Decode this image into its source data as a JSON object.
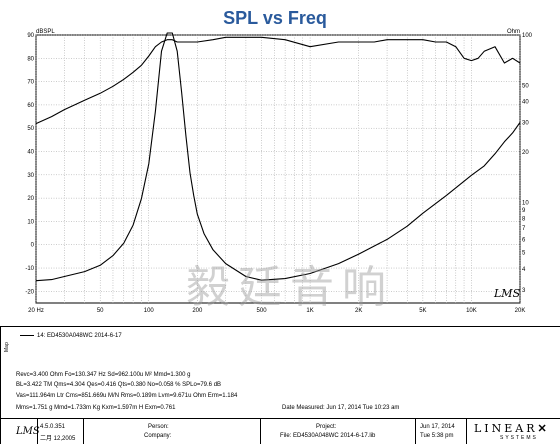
{
  "chart_data": {
    "type": "line",
    "title": "SPL vs Freq",
    "left_unit": "dBSPL",
    "right_unit": "Ohm",
    "x_scale": "log",
    "xlim": [
      20,
      20000
    ],
    "x_ticks": [
      20,
      50,
      100,
      200,
      500,
      1000,
      2000,
      5000,
      10000,
      20000
    ],
    "x_tick_labels": [
      "20 Hz",
      "50",
      "100",
      "200",
      "500",
      "1K",
      "2K",
      "5K",
      "10K",
      "20K"
    ],
    "ylim_left": [
      -25,
      90
    ],
    "y_left_ticks": [
      90,
      80,
      70,
      60,
      50,
      40,
      30,
      20,
      10,
      0,
      -10,
      -20
    ],
    "y_right_scale": "log",
    "ylim_right": [
      2.5,
      100
    ],
    "y_right_labeled_ticks": [
      100,
      50,
      40,
      30,
      20,
      10,
      9,
      8,
      7,
      6,
      5,
      4,
      3
    ],
    "grid": true,
    "watermark_text": "毅廷音响",
    "logo": "LMS",
    "series": [
      {
        "axis": "left",
        "color": "#000000",
        "x": [
          20,
          25,
          30,
          40,
          50,
          60,
          70,
          80,
          90,
          100,
          110,
          120,
          130,
          140,
          150,
          170,
          200,
          250,
          300,
          400,
          500,
          700,
          1000,
          1500,
          2000,
          2500,
          3000,
          4000,
          5000,
          6000,
          7000,
          8000,
          9000,
          10000,
          11000,
          12000,
          14000,
          16000,
          18000,
          20000
        ],
        "y": [
          52,
          55,
          58,
          62,
          65,
          68,
          71,
          74,
          77,
          81,
          85,
          87,
          88,
          88,
          87,
          87,
          87,
          88,
          89,
          89,
          89,
          88,
          85,
          87,
          87,
          87,
          88,
          88,
          88,
          87,
          87,
          85,
          80,
          79,
          80,
          83,
          85,
          78,
          80,
          78
        ]
      },
      {
        "axis": "right",
        "color": "#000000",
        "x": [
          20,
          25,
          30,
          40,
          50,
          60,
          70,
          80,
          90,
          100,
          110,
          120,
          130,
          140,
          150,
          160,
          170,
          180,
          190,
          200,
          220,
          250,
          300,
          400,
          500,
          700,
          1000,
          1500,
          2000,
          3000,
          4000,
          5000,
          7000,
          10000,
          12000,
          14000,
          16000,
          18000,
          20000
        ],
        "y": [
          3.4,
          3.45,
          3.6,
          3.85,
          4.2,
          4.8,
          5.7,
          7.3,
          10.5,
          17,
          35,
          80,
          130,
          130,
          80,
          45,
          25,
          15,
          11,
          8.5,
          6.5,
          5.2,
          4.3,
          3.6,
          3.42,
          3.5,
          3.75,
          4.3,
          4.9,
          6.0,
          7.2,
          8.6,
          11.0,
          14.5,
          16.5,
          19.5,
          23,
          26,
          30
        ]
      }
    ]
  },
  "legend": {
    "tab_label": "Map",
    "entry": "14: ED4530A048WC   2014-6-17"
  },
  "params": {
    "line1": "Revc=3.400 Ohm   Fo=130.347 Hz   Sd=962.100u M²   Mmd=1.300 g",
    "line2": "BL=3.422 TM   Qms=4.304   Qes=0.416   Qts=0.380   No=0.058 %   SPLo=79.6 dB",
    "line3": "Vas=111.964m Ltr   Cms=851.669u M/N   Rms=0.189m   Lvm=9.671u Ohm   Erm=1.184",
    "line4": "Mms=1.751 g   Mmd=1.733m Kg   Kxm=1.597m H   Exm=0.761",
    "date_measured": "Date Measured: Jun 17, 2014   Tue 10:23 am"
  },
  "footer": {
    "version": "4.5.0.351",
    "date": "二月 12,2005",
    "person_label": "Person:",
    "company_label": "Company:",
    "project_label": "Project:",
    "file_label": "File: ED4530A048WC   2014-6-17.lib",
    "print_date": "Jun 17, 2014",
    "print_time": "Tue   5:38 pm",
    "brand": "LINEAR",
    "brand_sub": "SYSTEMS"
  }
}
